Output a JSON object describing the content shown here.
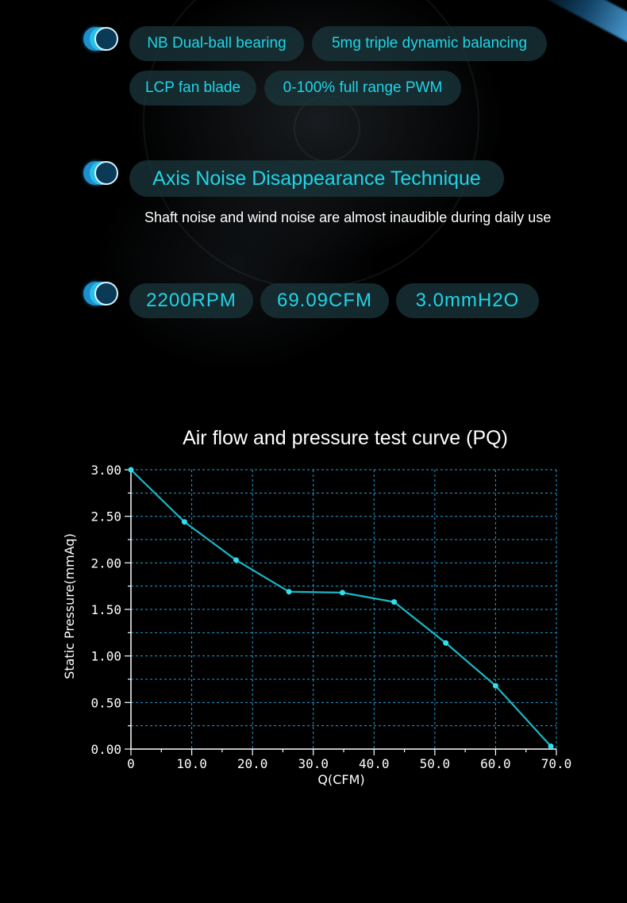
{
  "features": {
    "row1": [
      "NB Dual-ball bearing",
      "5mg triple dynamic balancing"
    ],
    "row2": [
      "LCP fan blade",
      "0-100% full range PWM"
    ]
  },
  "noise": {
    "heading": "Axis Noise Disappearance Technique",
    "description": "Shaft noise and wind noise are almost inaudible during daily use"
  },
  "specs": {
    "speed": "2200RPM",
    "airflow": "69.09CFM",
    "pressure": "3.0mmH2O"
  },
  "colors": {
    "accent": "#21d4e6",
    "curve": "#19b8c6",
    "grid": "#1ea0d8",
    "background": "#000000"
  },
  "chart_data": {
    "type": "line",
    "title": "Air flow and pressure test curve (PQ)",
    "xlabel": "Q(CFM)",
    "ylabel": "Static Pressure(mmAq)",
    "xlim": [
      0,
      70
    ],
    "ylim": [
      0,
      3
    ],
    "x_ticks": [
      "0",
      "10.0",
      "20.0",
      "30.0",
      "40.0",
      "50.0",
      "60.0",
      "70.0"
    ],
    "y_ticks": [
      "0.00",
      "0.50",
      "1.00",
      "1.50",
      "2.00",
      "2.50",
      "3.00"
    ],
    "grid": true,
    "grid_style": "dashed",
    "series": [
      {
        "x": [
          0,
          8.8,
          17.3,
          26.0,
          34.8,
          43.3,
          51.8,
          60.0,
          69.1
        ],
        "y": [
          3.0,
          2.44,
          2.03,
          1.69,
          1.68,
          1.58,
          1.14,
          0.68,
          0.03
        ]
      }
    ]
  }
}
